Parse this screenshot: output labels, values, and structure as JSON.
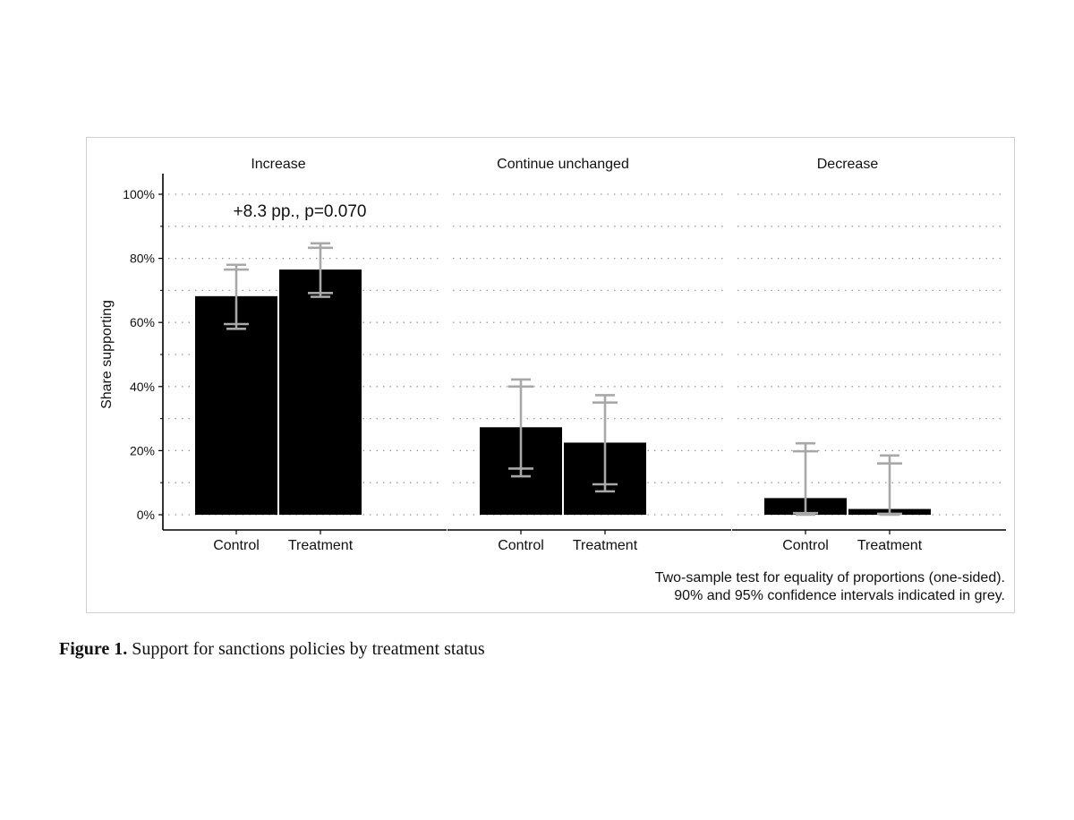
{
  "chart_data": {
    "type": "bar",
    "ylabel": "Share supporting",
    "ylim": [
      0,
      100
    ],
    "yticks": [
      0,
      20,
      40,
      60,
      80,
      100
    ],
    "ytick_labels": [
      "0%",
      "20%",
      "40%",
      "60%",
      "80%",
      "100%"
    ],
    "grid": "dotted",
    "error_bar_color": "#a8a8a8",
    "bar_color": "#000000",
    "panels": [
      {
        "title": "Increase",
        "categories": [
          "Control",
          "Treatment"
        ],
        "values": [
          68.2,
          76.5
        ],
        "ci90": [
          [
            59.5,
            76.5
          ],
          [
            69.2,
            83.3
          ]
        ],
        "ci95": [
          [
            58.0,
            78.0
          ],
          [
            68.0,
            84.7
          ]
        ],
        "annotation": "+8.3 pp., p=0.070"
      },
      {
        "title": "Continue unchanged",
        "categories": [
          "Control",
          "Treatment"
        ],
        "values": [
          27.3,
          22.5
        ],
        "ci90": [
          [
            14.4,
            40.0
          ],
          [
            9.5,
            35.0
          ]
        ],
        "ci95": [
          [
            12.0,
            42.2
          ],
          [
            7.3,
            37.3
          ]
        ]
      },
      {
        "title": "Decrease",
        "categories": [
          "Control",
          "Treatment"
        ],
        "values": [
          5.2,
          1.8
        ],
        "ci90": [
          [
            0.5,
            19.8
          ],
          [
            0.3,
            16.0
          ]
        ],
        "ci95": [
          [
            0.0,
            22.3
          ],
          [
            0.0,
            18.5
          ]
        ]
      }
    ],
    "note_lines": [
      "Two-sample test for equality of proportions (one-sided).",
      "90% and 95% confidence intervals indicated in grey."
    ]
  },
  "caption": {
    "label": "Figure 1.",
    "text": " Support for sanctions policies by treatment status"
  }
}
